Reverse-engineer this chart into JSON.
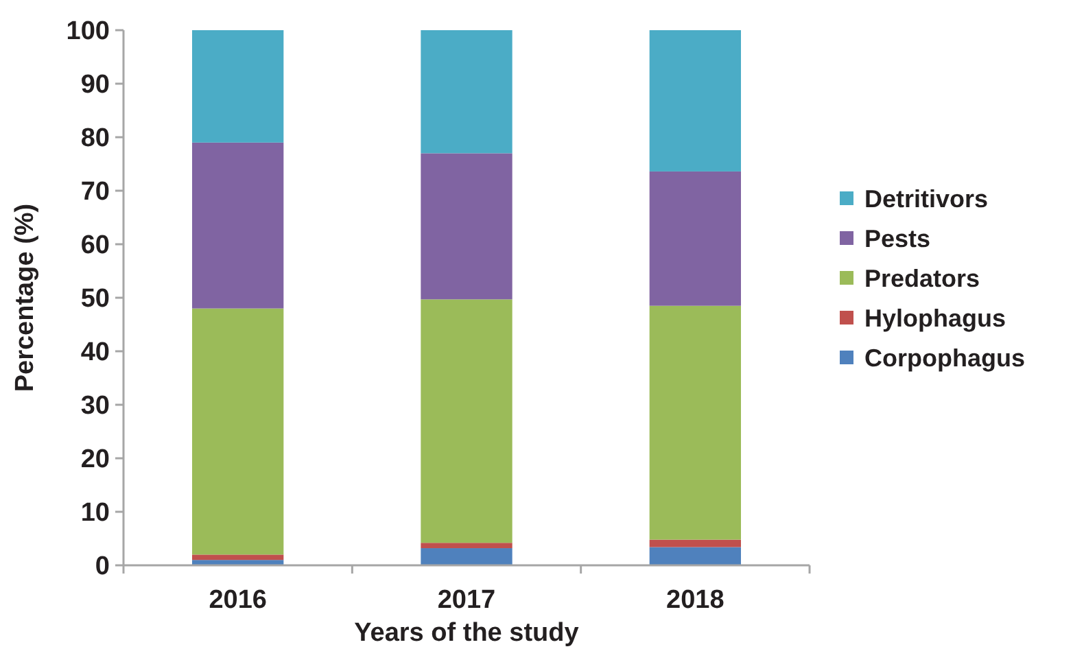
{
  "chart_data": {
    "type": "bar",
    "stacked": true,
    "xlabel": "Years of the study",
    "ylabel": "Percentage (%)",
    "categories": [
      "2016",
      "2017",
      "2018"
    ],
    "series": [
      {
        "name": "Corpophagus",
        "color": "#4f81bd",
        "values": [
          1.0,
          3.2,
          3.4
        ]
      },
      {
        "name": "Hylophagus",
        "color": "#c0504d",
        "values": [
          1.0,
          1.0,
          1.4
        ]
      },
      {
        "name": "Predators",
        "color": "#9bbb59",
        "values": [
          46,
          45.5,
          43.7
        ]
      },
      {
        "name": "Pests",
        "color": "#8064a2",
        "values": [
          31,
          27.3,
          25.1
        ]
      },
      {
        "name": "Detritivors",
        "color": "#4bacc6",
        "values": [
          21,
          23,
          26.4
        ]
      }
    ],
    "ylim": [
      0,
      100
    ],
    "yticks": [
      0,
      10,
      20,
      30,
      40,
      50,
      60,
      70,
      80,
      90,
      100
    ],
    "grid": false,
    "legend": "right"
  }
}
